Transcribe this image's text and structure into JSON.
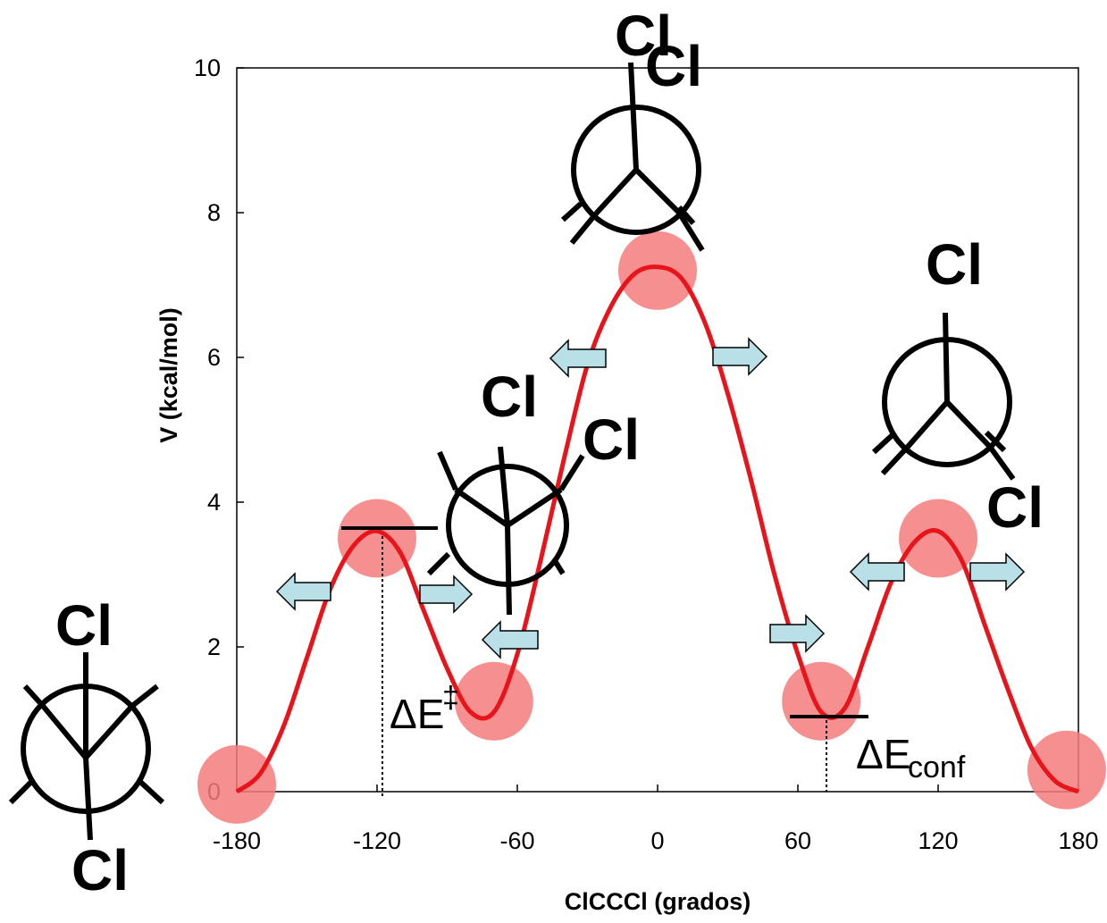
{
  "chart_data": {
    "type": "line",
    "xlabel": "ClCCCl (grados)",
    "ylabel": "V (kcal/mol)",
    "xlim": [
      -180,
      180
    ],
    "ylim": [
      0,
      10
    ],
    "xticks": [
      "-180",
      "-120",
      "-60",
      "0",
      "60",
      "120",
      "180"
    ],
    "yticks": [
      "0",
      "2",
      "4",
      "6",
      "8",
      "10"
    ],
    "grid": false,
    "series": [
      {
        "color": "#e8141b",
        "x": [
          -180,
          -170,
          -160,
          -150,
          -140,
          -130,
          -120,
          -110,
          -100,
          -90,
          -80,
          -70,
          -60,
          -50,
          -40,
          -30,
          -20,
          -10,
          0,
          10,
          20,
          30,
          40,
          50,
          60,
          70,
          80,
          90,
          100,
          110,
          120,
          130,
          140,
          150,
          160,
          170,
          180
        ],
        "values": [
          0.0,
          0.25,
          0.9,
          1.85,
          2.8,
          3.4,
          3.6,
          3.3,
          2.5,
          1.7,
          1.1,
          1.1,
          1.9,
          3.2,
          4.6,
          5.9,
          6.7,
          7.15,
          7.25,
          7.1,
          6.5,
          5.5,
          4.3,
          3.0,
          1.9,
          1.1,
          1.15,
          2.0,
          2.9,
          3.45,
          3.6,
          3.2,
          2.3,
          1.4,
          0.6,
          0.15,
          0.0
        ]
      }
    ],
    "markers": {
      "color": "#f47c7c",
      "x": [
        -180,
        -120,
        -70,
        0,
        70,
        120,
        175
      ],
      "y": [
        0.1,
        3.5,
        1.25,
        7.2,
        1.25,
        3.5,
        0.3
      ]
    },
    "annotations": {
      "barrier": {
        "label": "ΔE",
        "superscript": "‡",
        "x": -120,
        "y": 3.6
      },
      "conformational": {
        "label": "ΔE",
        "subscript": "conf",
        "x": 72,
        "y": 1.05
      }
    },
    "substituent_label": "Cl"
  }
}
